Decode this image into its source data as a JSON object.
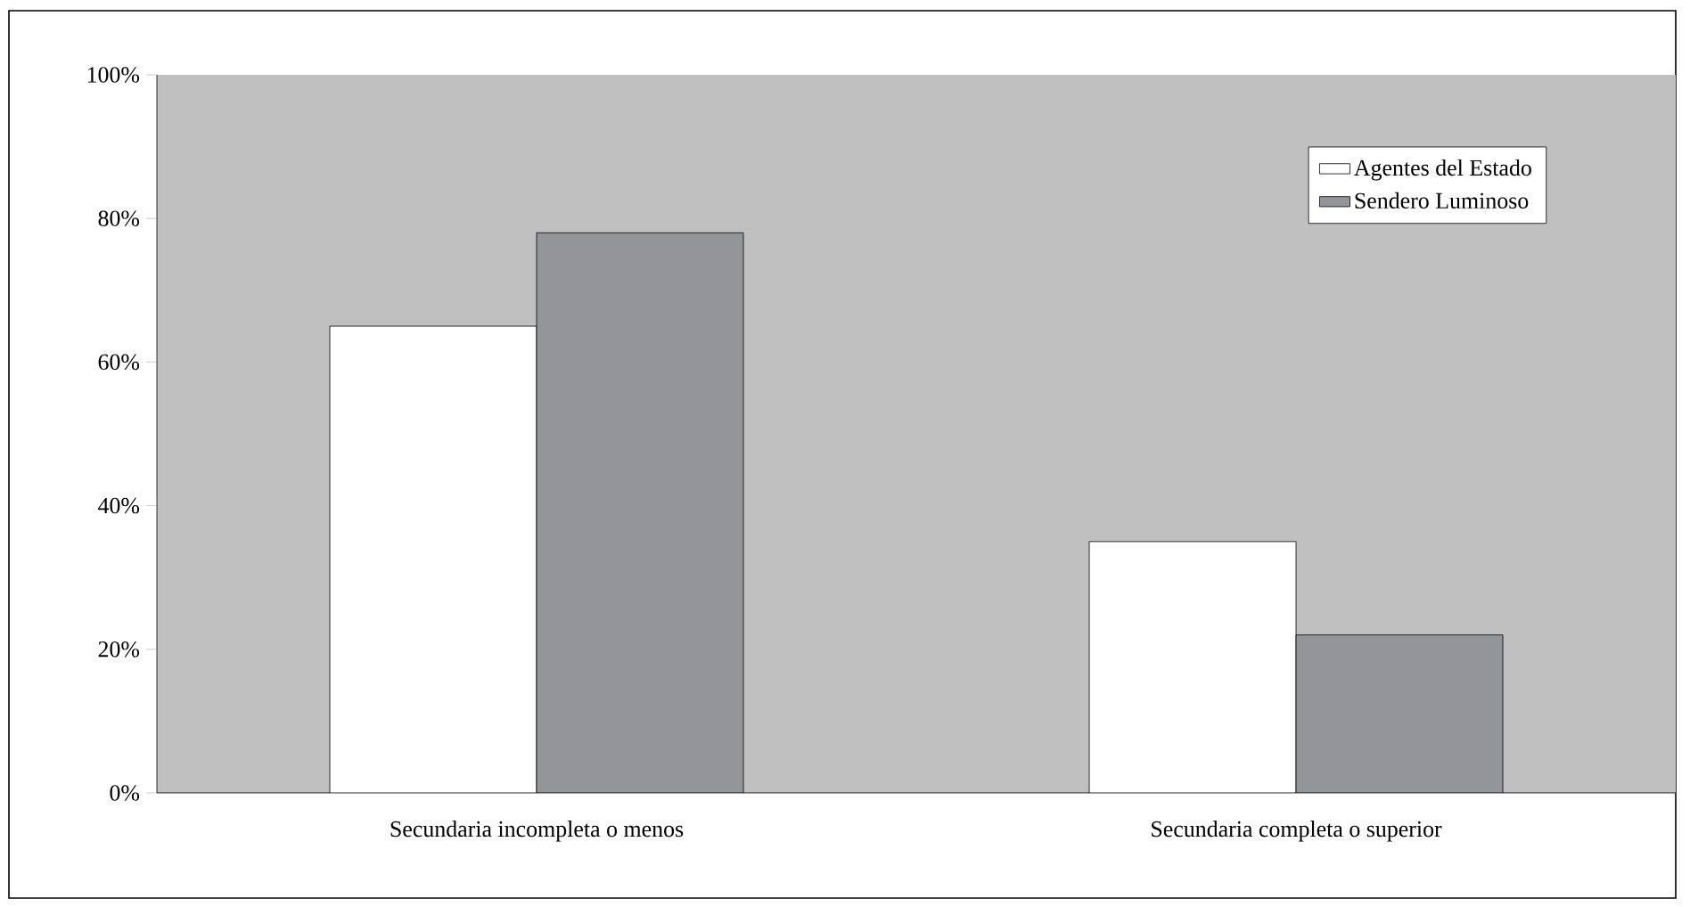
{
  "chart_data": {
    "type": "bar",
    "categories": [
      "Secundaria incompleta o menos",
      "Secundaria completa o superior"
    ],
    "series": [
      {
        "name": "Agentes del Estado",
        "color": "#ffffff",
        "values": [
          65,
          35
        ]
      },
      {
        "name": "Sendero Luminoso",
        "color": "#939598",
        "values": [
          78,
          22
        ]
      }
    ],
    "ylim": [
      0,
      100
    ],
    "yticks": [
      {
        "value": 0,
        "label": "0%"
      },
      {
        "value": 20,
        "label": "20%"
      },
      {
        "value": 40,
        "label": "40%"
      },
      {
        "value": 60,
        "label": "60%"
      },
      {
        "value": 80,
        "label": "80%"
      },
      {
        "value": 100,
        "label": "100%"
      }
    ],
    "grid": false,
    "legend": "top right"
  }
}
